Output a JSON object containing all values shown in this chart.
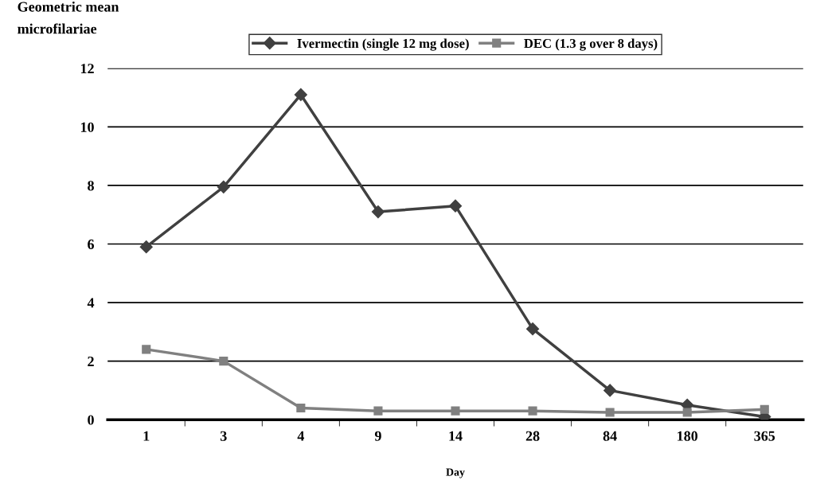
{
  "chart_data": {
    "type": "line",
    "ylabel": "Geometric mean\nmicrofilariae",
    "xlabel": "Day",
    "categories": [
      "1",
      "3",
      "4",
      "9",
      "14",
      "28",
      "84",
      "180",
      "365"
    ],
    "series": [
      {
        "name": "Ivermectin (single 12 mg dose)",
        "color": "#404040",
        "marker": "diamond",
        "values": [
          5.9,
          7.95,
          11.1,
          7.1,
          7.3,
          3.1,
          1.0,
          0.5,
          0.1
        ]
      },
      {
        "name": "DEC (1.3 g over 8 days)",
        "color": "#808080",
        "marker": "square",
        "values": [
          2.4,
          2.0,
          0.4,
          0.3,
          0.3,
          0.3,
          0.25,
          0.25,
          0.35
        ]
      }
    ],
    "ylim": [
      0,
      12
    ],
    "yticks": [
      0,
      2,
      4,
      6,
      8,
      10,
      12
    ],
    "grid": "y",
    "legend": "top",
    "line_style": "solid"
  }
}
